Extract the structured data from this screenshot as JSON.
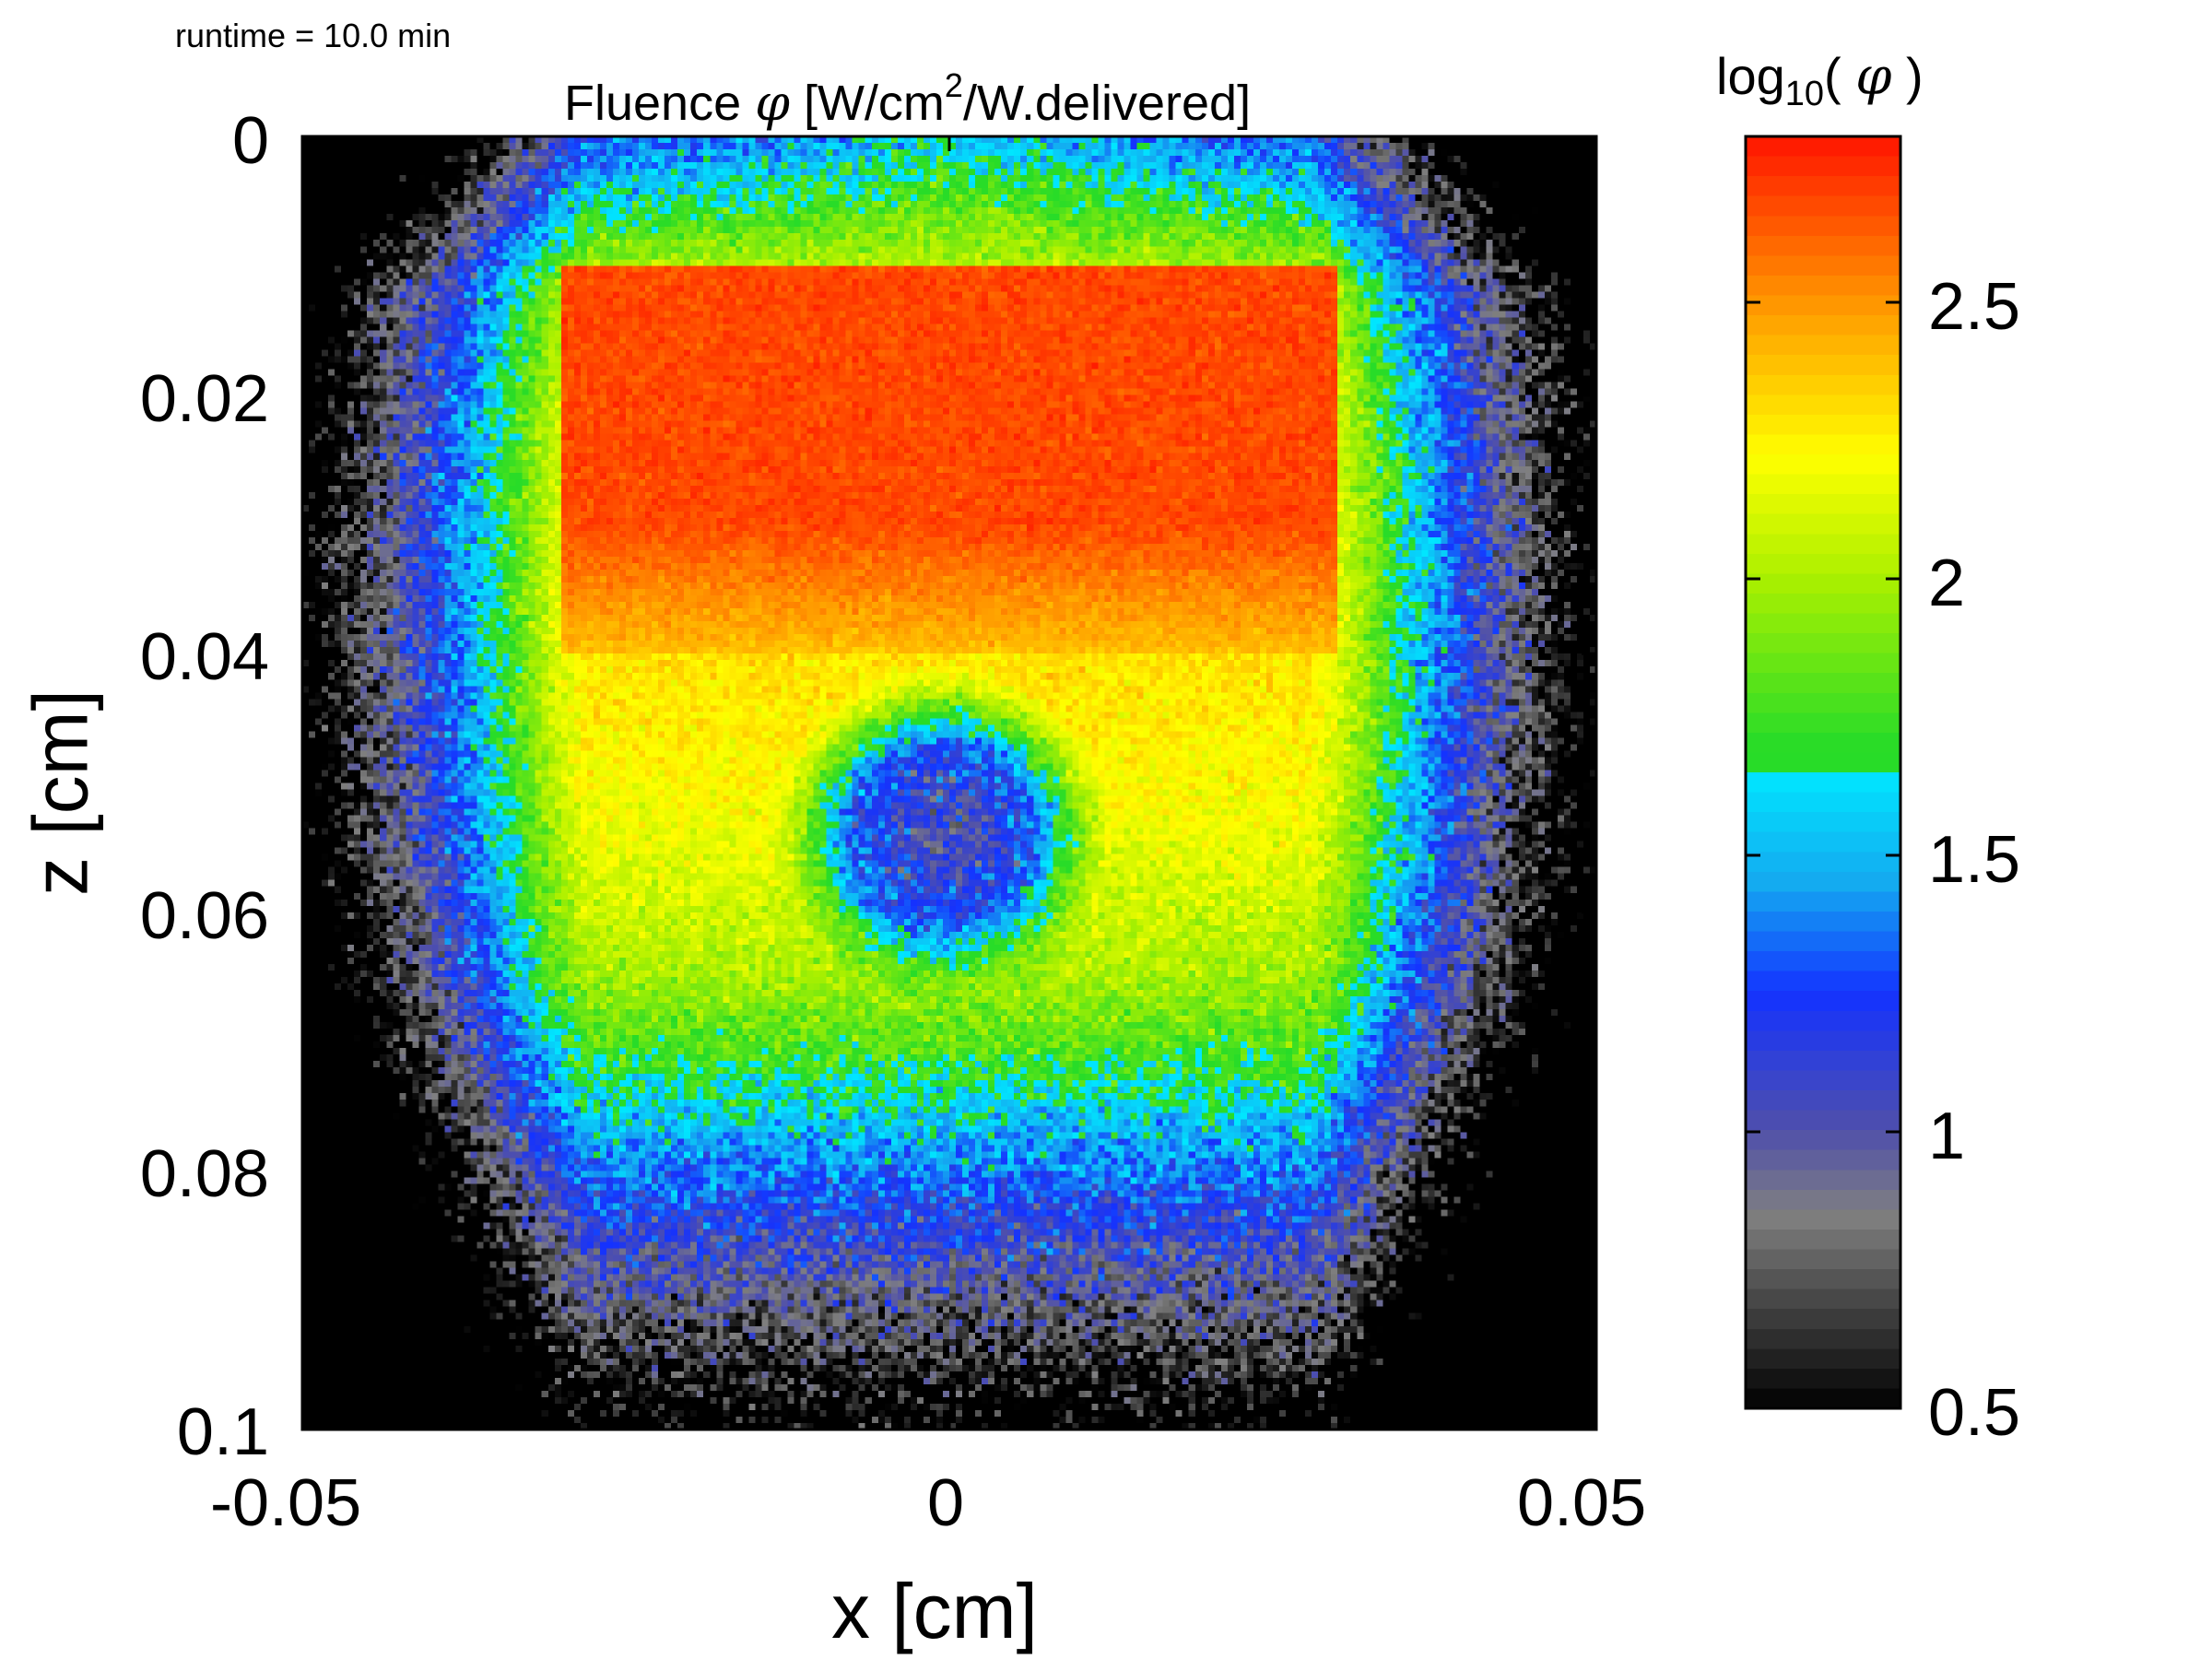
{
  "runtime": "runtime = 10.0 min",
  "chart_data": {
    "type": "heatmap",
    "title_prefix": "Fluence ",
    "title_symbol": "φ",
    "title_unit_a": " [W/cm",
    "title_unit_sup": "2",
    "title_unit_b": "/W.delivered]",
    "xlabel": "x [cm]",
    "ylabel": "z [cm]",
    "xlim": [
      -0.05,
      0.05
    ],
    "ylim": [
      0,
      0.1
    ],
    "y_reversed": true,
    "x_ticks": [
      "-0.05",
      "0",
      "0.05"
    ],
    "y_ticks": [
      "0",
      "0.02",
      "0.04",
      "0.06",
      "0.08",
      "0.1"
    ],
    "colorbar": {
      "label_prefix": "log",
      "label_sub": "10",
      "label_open": "( ",
      "label_symbol": "φ",
      "label_close": " )",
      "range": [
        0.5,
        2.8
      ],
      "ticks": [
        "0.5",
        "1",
        "1.5",
        "2",
        "2.5"
      ],
      "colormap": "grayscale to blue to cyan to green to yellow to red"
    },
    "regions": [
      {
        "name": "beam-slab",
        "x_range": [
          -0.03,
          0.03
        ],
        "z_range": [
          0.01,
          0.04
        ],
        "log10_phi": 2.65
      },
      {
        "name": "scatter-halo",
        "x_center": 0.0,
        "z_center": 0.03,
        "log10_phi": 2.2
      },
      {
        "name": "absorbing-inclusion",
        "x_center": -0.0005,
        "z_center": 0.054,
        "radius": 0.007,
        "log10_phi": 0.95
      },
      {
        "name": "deep-background",
        "z_range": [
          0.08,
          0.1
        ],
        "log10_phi": 1.45
      },
      {
        "name": "surface-corners",
        "z_range": [
          0,
          0.01
        ],
        "log10_phi": 1.5
      }
    ],
    "colors": {
      "red": "#ff1a00",
      "yellow": "#ffff00",
      "green": "#33e619",
      "cyan": "#00e6ff",
      "blue": "#1a33ff",
      "gray": "#808080"
    }
  }
}
